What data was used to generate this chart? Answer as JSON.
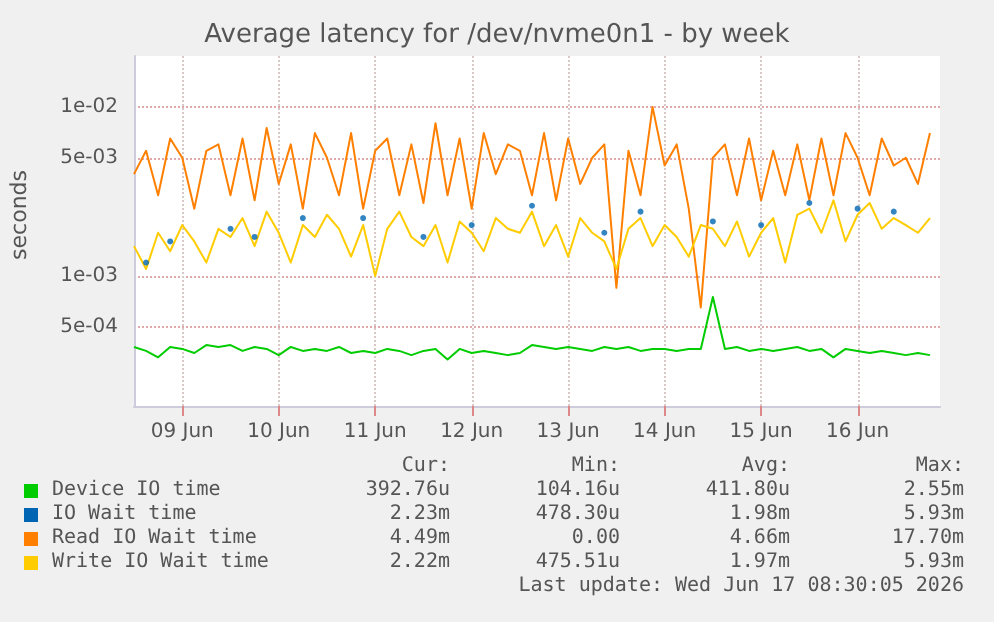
{
  "chart_data": {
    "type": "line",
    "title": "Average latency for /dev/nvme0n1 - by week",
    "ylabel": "seconds",
    "log": "y",
    "grid": true,
    "legend": "bottom",
    "xlim": [
      "2026-06-09T00:00",
      "2026-06-17T08:30"
    ],
    "xticks": [
      {
        "value": "2026-06-09T12:00",
        "label": "09 Jun"
      },
      {
        "value": "2026-06-10T12:00",
        "label": "10 Jun"
      },
      {
        "value": "2026-06-11T12:00",
        "label": "11 Jun"
      },
      {
        "value": "2026-06-12T12:00",
        "label": "12 Jun"
      },
      {
        "value": "2026-06-13T12:00",
        "label": "13 Jun"
      },
      {
        "value": "2026-06-14T12:00",
        "label": "14 Jun"
      },
      {
        "value": "2026-06-15T12:00",
        "label": "15 Jun"
      },
      {
        "value": "2026-06-16T12:00",
        "label": "16 Jun"
      }
    ],
    "ylim": [
      0.00017,
      0.02
    ],
    "yticks": [
      {
        "value": 0.0005,
        "label": "5e-04"
      },
      {
        "value": 0.001,
        "label": "1e-03"
      },
      {
        "value": 0.005,
        "label": "5e-03"
      },
      {
        "value": 0.01,
        "label": "1e-02"
      }
    ],
    "x": [
      "2026-06-09T00:00",
      "2026-06-09T03:00",
      "2026-06-09T06:00",
      "2026-06-09T09:00",
      "2026-06-09T12:00",
      "2026-06-09T15:00",
      "2026-06-09T18:00",
      "2026-06-09T21:00",
      "2026-06-10T00:00",
      "2026-06-10T03:00",
      "2026-06-10T06:00",
      "2026-06-10T09:00",
      "2026-06-10T12:00",
      "2026-06-10T15:00",
      "2026-06-10T18:00",
      "2026-06-10T21:00",
      "2026-06-11T00:00",
      "2026-06-11T03:00",
      "2026-06-11T06:00",
      "2026-06-11T09:00",
      "2026-06-11T12:00",
      "2026-06-11T15:00",
      "2026-06-11T18:00",
      "2026-06-11T21:00",
      "2026-06-12T00:00",
      "2026-06-12T03:00",
      "2026-06-12T06:00",
      "2026-06-12T09:00",
      "2026-06-12T12:00",
      "2026-06-12T15:00",
      "2026-06-12T18:00",
      "2026-06-12T21:00",
      "2026-06-13T00:00",
      "2026-06-13T03:00",
      "2026-06-13T06:00",
      "2026-06-13T09:00",
      "2026-06-13T12:00",
      "2026-06-13T15:00",
      "2026-06-13T18:00",
      "2026-06-13T21:00",
      "2026-06-14T00:00",
      "2026-06-14T03:00",
      "2026-06-14T06:00",
      "2026-06-14T09:00",
      "2026-06-14T12:00",
      "2026-06-14T15:00",
      "2026-06-14T18:00",
      "2026-06-14T21:00",
      "2026-06-15T00:00",
      "2026-06-15T03:00",
      "2026-06-15T06:00",
      "2026-06-15T09:00",
      "2026-06-15T12:00",
      "2026-06-15T15:00",
      "2026-06-15T18:00",
      "2026-06-15T21:00",
      "2026-06-16T00:00",
      "2026-06-16T03:00",
      "2026-06-16T06:00",
      "2026-06-16T09:00",
      "2026-06-16T12:00",
      "2026-06-16T15:00",
      "2026-06-16T18:00",
      "2026-06-16T21:00",
      "2026-06-17T00:00",
      "2026-06-17T03:00",
      "2026-06-17T06:00"
    ],
    "series": [
      {
        "name": "Device IO time",
        "color": "#00cc00",
        "values": [
          0.00038,
          0.00036,
          0.00033,
          0.00038,
          0.00037,
          0.00035,
          0.00039,
          0.00038,
          0.00039,
          0.00036,
          0.00038,
          0.00037,
          0.00034,
          0.00038,
          0.00036,
          0.00037,
          0.00036,
          0.00038,
          0.00035,
          0.00036,
          0.00035,
          0.00037,
          0.00036,
          0.00034,
          0.00036,
          0.00037,
          0.00032,
          0.00037,
          0.00035,
          0.00036,
          0.00035,
          0.00034,
          0.00035,
          0.00039,
          0.00038,
          0.00037,
          0.00038,
          0.00037,
          0.00036,
          0.00038,
          0.00037,
          0.00038,
          0.00036,
          0.00037,
          0.00037,
          0.00036,
          0.00037,
          0.00037,
          0.00075,
          0.00037,
          0.00038,
          0.00036,
          0.00037,
          0.00036,
          0.00037,
          0.00038,
          0.00036,
          0.00037,
          0.00033,
          0.00037,
          0.00036,
          0.00035,
          0.00036,
          0.00035,
          0.00034,
          0.00035,
          0.00034
        ]
      },
      {
        "name": "IO Wait time",
        "color": "#0066b3",
        "type": "scatter",
        "values": [
          null,
          0.0012,
          null,
          0.0016,
          null,
          null,
          null,
          null,
          0.0019,
          null,
          0.0017,
          null,
          null,
          null,
          0.0022,
          null,
          null,
          null,
          null,
          0.0022,
          null,
          null,
          null,
          null,
          0.0017,
          null,
          null,
          null,
          0.002,
          null,
          null,
          null,
          null,
          0.0026,
          null,
          null,
          null,
          null,
          null,
          0.0018,
          null,
          null,
          0.0024,
          null,
          null,
          null,
          null,
          null,
          0.0021,
          null,
          null,
          null,
          0.002,
          null,
          null,
          null,
          0.0027,
          null,
          null,
          null,
          0.0025,
          null,
          null,
          0.0024,
          null,
          null,
          null
        ]
      },
      {
        "name": "Read IO Wait time",
        "color": "#ff8000",
        "values": [
          0.004,
          0.0055,
          0.003,
          0.0065,
          0.005,
          0.0025,
          0.0055,
          0.006,
          0.003,
          0.0065,
          0.0028,
          0.0075,
          0.0035,
          0.006,
          0.0025,
          0.007,
          0.005,
          0.003,
          0.007,
          0.0025,
          0.0055,
          0.0065,
          0.003,
          0.006,
          0.0027,
          0.008,
          0.003,
          0.0065,
          0.0025,
          0.007,
          0.004,
          0.006,
          0.0055,
          0.003,
          0.007,
          0.0028,
          0.0065,
          0.0035,
          0.005,
          0.006,
          0.00085,
          0.0055,
          0.003,
          0.01,
          0.0045,
          0.006,
          0.0025,
          0.00065,
          0.005,
          0.006,
          0.003,
          0.0065,
          0.0028,
          0.0055,
          0.003,
          0.006,
          0.0028,
          0.0065,
          0.003,
          0.007,
          0.005,
          0.003,
          0.0065,
          0.0045,
          0.005,
          0.0035,
          0.007
        ]
      },
      {
        "name": "Write IO Wait time",
        "color": "#ffcc00",
        "values": [
          0.0015,
          0.0011,
          0.0018,
          0.0014,
          0.002,
          0.0016,
          0.0012,
          0.0019,
          0.0017,
          0.0022,
          0.0015,
          0.0024,
          0.0018,
          0.0012,
          0.002,
          0.0017,
          0.0023,
          0.0019,
          0.0013,
          0.002,
          0.001,
          0.0019,
          0.0024,
          0.0017,
          0.0015,
          0.002,
          0.0012,
          0.0021,
          0.0018,
          0.0014,
          0.0022,
          0.0019,
          0.0018,
          0.0024,
          0.0015,
          0.002,
          0.0013,
          0.0022,
          0.0018,
          0.0016,
          0.0011,
          0.0019,
          0.0022,
          0.0015,
          0.002,
          0.0017,
          0.0013,
          0.002,
          0.0019,
          0.0015,
          0.0021,
          0.0013,
          0.0018,
          0.0022,
          0.0012,
          0.0023,
          0.0025,
          0.0018,
          0.0028,
          0.0016,
          0.0023,
          0.0027,
          0.0019,
          0.0022,
          0.002,
          0.0018,
          0.0022
        ]
      }
    ],
    "annotations": [
      "Cur:",
      "Min:",
      "Avg:",
      "Max:",
      "392.76u",
      "104.16u",
      "411.80u",
      "2.55m",
      "2.23m",
      "478.30u",
      "1.98m",
      "5.93m",
      "4.49m",
      "0.00",
      "4.66m",
      "17.70m",
      "2.22m",
      "475.51u",
      "1.97m",
      "5.93m",
      "Last update: Wed Jun 17 08:30:05 2026"
    ]
  }
}
